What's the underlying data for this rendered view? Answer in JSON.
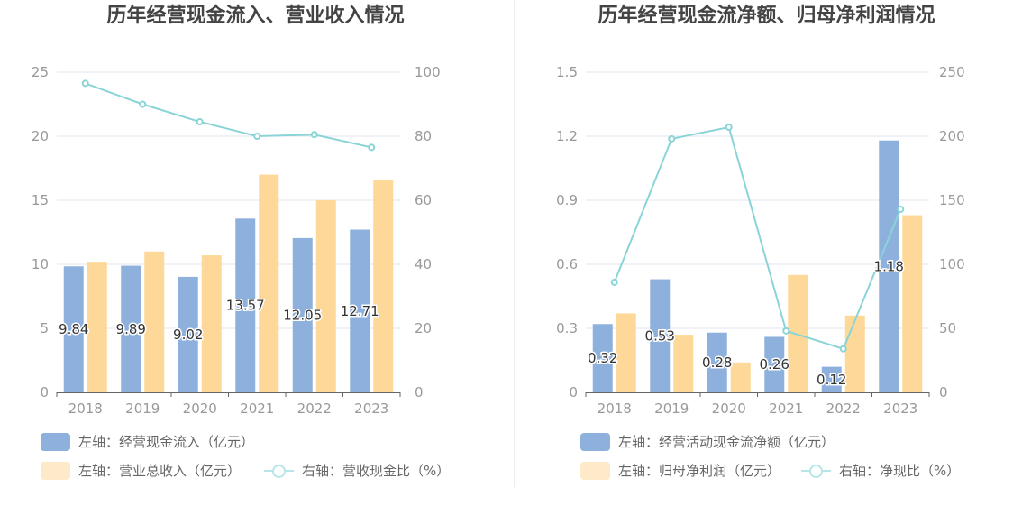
{
  "colors": {
    "bar_primary": "#8eb0dc",
    "bar_secondary": "#fdd898",
    "bar_secondary_legend": "#feeac8",
    "line": "#8ad4d8",
    "line_legend": "#b7e6e8",
    "grid": "#e3e6f0",
    "axis_text": "#999999",
    "axis_line": "#666666"
  },
  "chart_data": [
    {
      "type": "bar",
      "title": "历年经营现金流入、营业收入情况",
      "categories": [
        "2018",
        "2019",
        "2020",
        "2021",
        "2022",
        "2023"
      ],
      "y_left": {
        "min": 0,
        "max": 25,
        "ticks": [
          "0",
          "5",
          "10",
          "15",
          "20",
          "25"
        ]
      },
      "y_right": {
        "min": 0,
        "max": 100,
        "ticks": [
          "0",
          "20",
          "40",
          "60",
          "80",
          "100"
        ]
      },
      "series": [
        {
          "name": "左轴：经营现金流入（亿元）",
          "kind": "bar",
          "axis": "left",
          "values": [
            9.84,
            9.89,
            9.02,
            13.57,
            12.05,
            12.71
          ],
          "labels": [
            "9.84",
            "9.89",
            "9.02",
            "13.57",
            "12.05",
            "12.71"
          ]
        },
        {
          "name": "左轴：营业总收入（亿元）",
          "kind": "bar",
          "axis": "left",
          "values": [
            10.2,
            11.0,
            10.7,
            17.0,
            15.0,
            16.6
          ]
        },
        {
          "name": "右轴：营收现金比（%）",
          "kind": "line",
          "axis": "right",
          "values": [
            96.5,
            90.0,
            84.5,
            80.0,
            80.5,
            76.5
          ]
        }
      ]
    },
    {
      "type": "bar",
      "title": "历年经营现金流净额、归母净利润情况",
      "categories": [
        "2018",
        "2019",
        "2020",
        "2021",
        "2022",
        "2023"
      ],
      "y_left": {
        "min": 0,
        "max": 1.5,
        "ticks": [
          "0",
          "0.3",
          "0.6",
          "0.9",
          "1.2",
          "1.5"
        ]
      },
      "y_right": {
        "min": 0,
        "max": 250,
        "ticks": [
          "0",
          "50",
          "100",
          "150",
          "200",
          "250"
        ]
      },
      "series": [
        {
          "name": "左轴：经营活动现金流净额（亿元）",
          "kind": "bar",
          "axis": "left",
          "values": [
            0.32,
            0.53,
            0.28,
            0.26,
            0.12,
            1.18
          ],
          "labels": [
            "0.32",
            "0.53",
            "0.28",
            "0.26",
            "0.12",
            "1.18"
          ]
        },
        {
          "name": "左轴：归母净利润（亿元）",
          "kind": "bar",
          "axis": "left",
          "values": [
            0.37,
            0.27,
            0.14,
            0.55,
            0.36,
            0.83
          ]
        },
        {
          "name": "右轴：净现比（%）",
          "kind": "line",
          "axis": "right",
          "values": [
            86,
            198,
            207,
            48,
            34,
            143
          ]
        }
      ]
    }
  ]
}
